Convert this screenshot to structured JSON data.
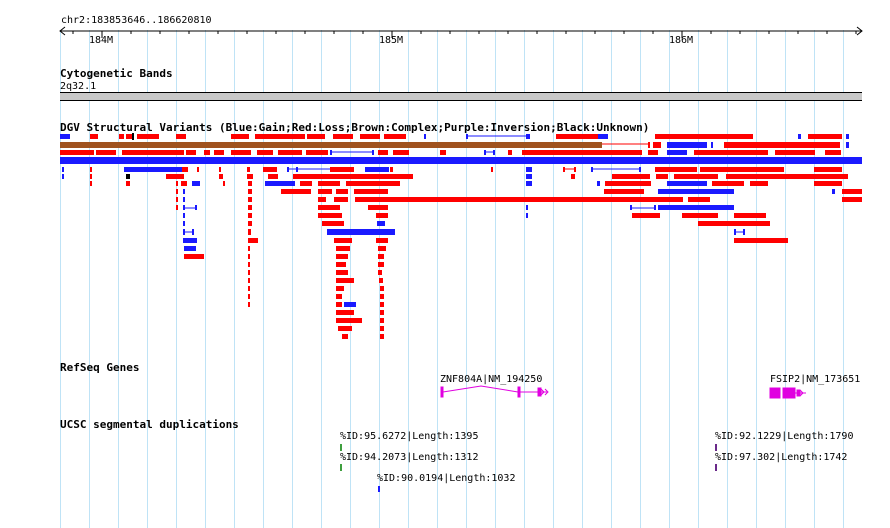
{
  "ruler": {
    "range_label": "chr2:183853646..186620810",
    "ticks": [
      {
        "label": "184M",
        "pos": 184000000
      },
      {
        "label": "185M",
        "pos": 185000000
      },
      {
        "label": "186M",
        "pos": 186000000
      }
    ],
    "start": 183853646,
    "end": 186620810
  },
  "tracks": {
    "cytobands": {
      "title": "Cytogenetic Bands",
      "band_label": "2q32.1"
    },
    "dgv": {
      "title": "DGV Structural Variants (Blue:Gain;Red:Loss;Brown:Complex;Purple:Inversion;Black:Unknown)"
    },
    "refseq": {
      "title": "RefSeq Genes"
    },
    "segdups": {
      "title": "UCSC segmental duplications"
    }
  },
  "genes": [
    {
      "label": "ZNF804A|NM_194250"
    },
    {
      "label": "FSIP2|NM_173651"
    }
  ],
  "segdups": [
    {
      "label": "%ID:95.6272|Length:1395"
    },
    {
      "label": "%ID:94.2073|Length:1312"
    },
    {
      "label": "%ID:90.0194|Length:1032"
    },
    {
      "label": "%ID:92.1229|Length:1790"
    },
    {
      "label": "%ID:97.302|Length:1742"
    }
  ],
  "colors": {
    "gain": "#1a1aff",
    "loss": "#ff0000",
    "complex": "#a0521e",
    "unknown": "#000000",
    "gene": "#e000e0",
    "gridline": "#bfe3f6"
  }
}
